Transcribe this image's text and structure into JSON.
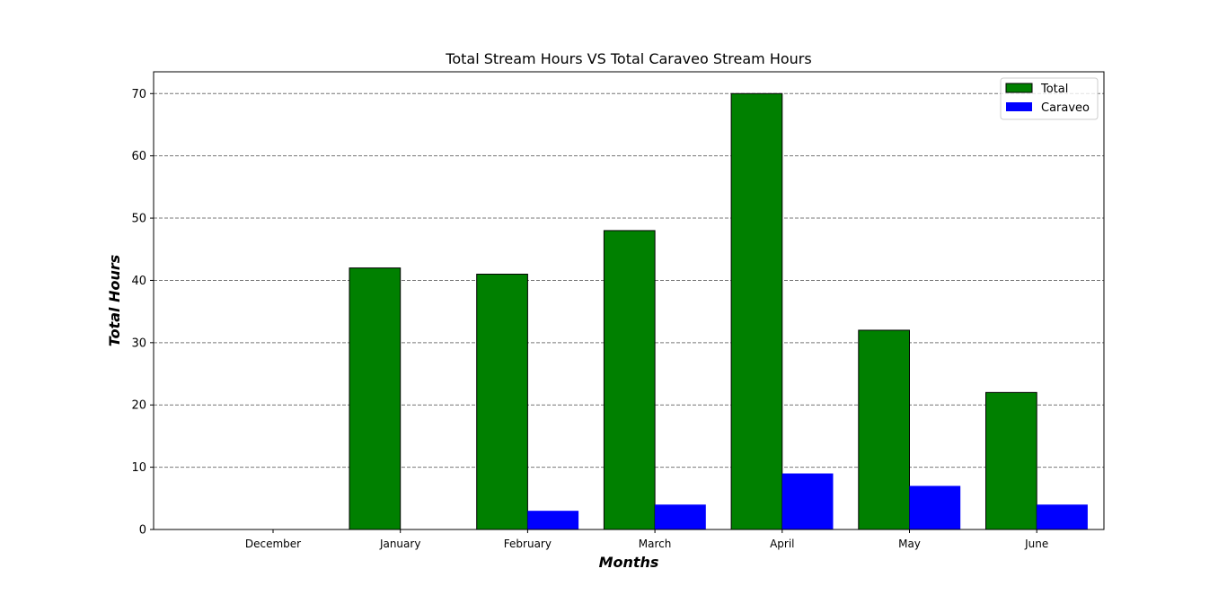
{
  "chart_data": {
    "type": "bar",
    "title": "Total Stream Hours VS Total Caraveo Stream Hours",
    "xlabel": "Months",
    "ylabel": "Total Hours",
    "categories": [
      "December",
      "January",
      "February",
      "March",
      "April",
      "May",
      "June"
    ],
    "series": [
      {
        "name": "Total",
        "values": [
          0,
          42,
          41,
          48,
          70,
          32,
          22
        ],
        "color": "#008000",
        "edge": "#000000"
      },
      {
        "name": "Caraveo",
        "values": [
          0,
          0,
          3,
          4,
          9,
          7,
          4
        ],
        "color": "#0000ff",
        "edge": "none"
      }
    ],
    "ylim": [
      0,
      73.5
    ],
    "yticks": [
      0,
      10,
      20,
      30,
      40,
      50,
      60,
      70
    ],
    "grid": "horizontal dashed",
    "legend_position": "top-right"
  }
}
